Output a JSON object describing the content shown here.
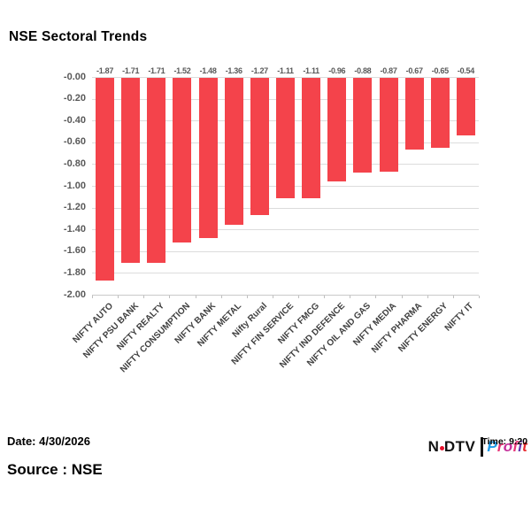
{
  "title": "NSE Sectoral Trends",
  "footer": {
    "date_label": "Date: 4/30/2026",
    "source_label": "Source : NSE",
    "time_label": "Time: 9:20"
  },
  "logo": {
    "ndtv_n": "N",
    "ndtv_dtv": "DTV",
    "ndtv_dot_color": "#e8112d",
    "profit_letters": [
      {
        "ch": "P",
        "color": "#1e9be9"
      },
      {
        "ch": "r",
        "color": "#e73577"
      },
      {
        "ch": "o",
        "color": "#c5309b"
      },
      {
        "ch": "f",
        "color": "#e73577"
      },
      {
        "ch": "i",
        "color": "#6a3ab2"
      },
      {
        "ch": "t",
        "color": "#e8282d"
      }
    ]
  },
  "chart_data": {
    "type": "bar",
    "title": "NSE Sectoral Trends",
    "categories": [
      "NIFTY AUTO",
      "NIFTY PSU BANK",
      "NIFTY REALTY",
      "NIFTY CONSUMPTION",
      "NIFTY BANK",
      "NIFTY METAL",
      "Nifty Rural",
      "NIFTY FIN SERVICE",
      "NIFTY FMCG",
      "NIFTY IND DEFENCE",
      "NIFTY OIL AND GAS",
      "NIFTY MEDIA",
      "NIFTY PHARMA",
      "NIFTY ENERGY",
      "NIFTY IT"
    ],
    "values": [
      -1.87,
      -1.71,
      -1.71,
      -1.52,
      -1.48,
      -1.36,
      -1.27,
      -1.11,
      -1.11,
      -0.96,
      -0.88,
      -0.87,
      -0.67,
      -0.65,
      -0.54
    ],
    "data_labels": [
      "-1.87",
      "-1.71",
      "-1.71",
      "-1.52",
      "-1.48",
      "-1.36",
      "-1.27",
      "-1.11",
      "-1.11",
      "-0.96",
      "-0.88",
      "-0.87",
      "-0.67",
      "-0.65",
      "-0.54"
    ],
    "y_ticks": [
      "-0.00",
      "-0.20",
      "-0.40",
      "-0.60",
      "-0.80",
      "-1.00",
      "-1.20",
      "-1.40",
      "-1.60",
      "-1.80",
      "-2.00"
    ],
    "ylim": [
      0,
      -2.0
    ],
    "xlabel": "",
    "ylabel": "",
    "legend": "none",
    "grid": "horizontal",
    "bar_color": "#f4434b",
    "gridline_color": "#dcdcdc",
    "label_color": "#595959"
  }
}
